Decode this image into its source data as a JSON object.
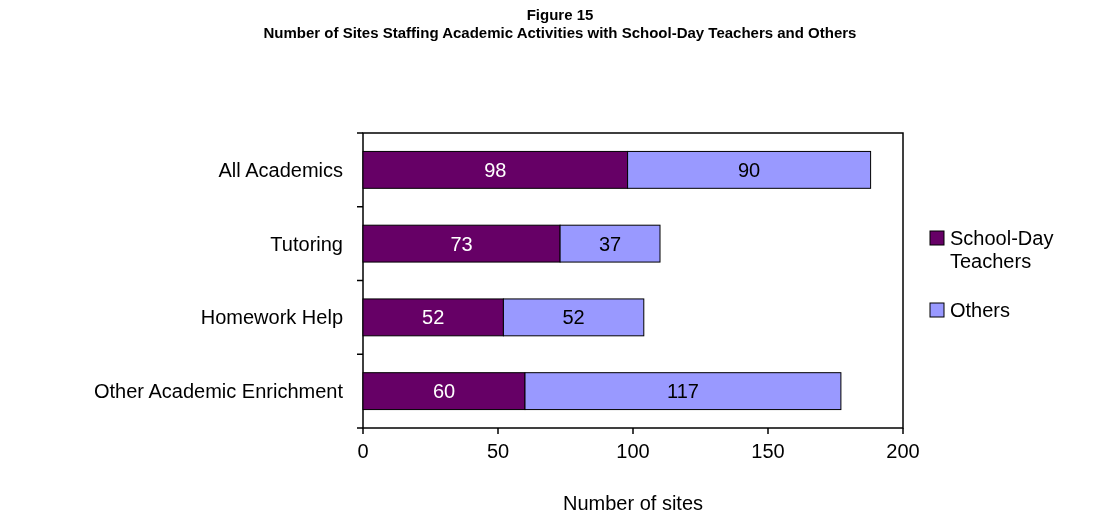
{
  "chart_data": {
    "type": "bar",
    "orientation": "horizontal",
    "stacked": true,
    "title": "Figure 15",
    "subtitle": "Number of Sites Staffing Academic Activities with School-Day Teachers and Others",
    "xlabel": "Number of sites",
    "categories": [
      "All Academics",
      "Tutoring",
      "Homework Help",
      "Other Academic Enrichment"
    ],
    "series": [
      {
        "name": "School-Day Teachers",
        "color": "#660066",
        "values": [
          98,
          73,
          52,
          60
        ]
      },
      {
        "name": "Others",
        "color": "#9999ff",
        "values": [
          90,
          37,
          52,
          117
        ]
      }
    ],
    "xlim": [
      0,
      200
    ],
    "xticks": [
      0,
      50,
      100,
      150,
      200
    ],
    "data_labels": true,
    "legend": "right",
    "grid": false
  }
}
